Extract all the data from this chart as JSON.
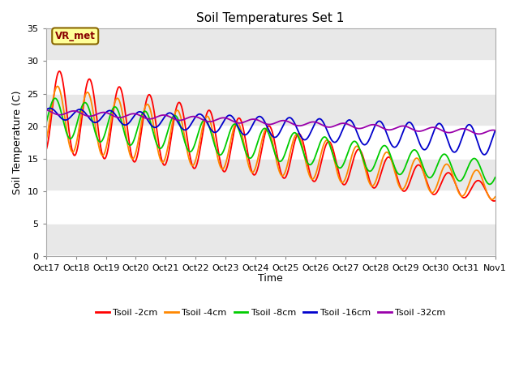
{
  "title": "Soil Temperatures Set 1",
  "xlabel": "Time",
  "ylabel": "Soil Temperature (C)",
  "xlim": [
    0,
    15
  ],
  "ylim": [
    0,
    35
  ],
  "yticks": [
    0,
    5,
    10,
    15,
    20,
    25,
    30,
    35
  ],
  "xtick_labels": [
    "Oct 17",
    "Oct 18",
    "Oct 19",
    "Oct 20",
    "Oct 21",
    "Oct 22",
    "Oct 23",
    "Oct 24",
    "Oct 25",
    "Oct 26",
    "Oct 27",
    "Oct 28",
    "Oct 29",
    "Oct 30",
    "Oct 31",
    "Nov 1"
  ],
  "annotation_text": "VR_met",
  "bg_color": "#e8e8e8",
  "grid_color": "#ffffff",
  "line_colors": {
    "Tsoil -2cm": "#ff0000",
    "Tsoil -4cm": "#ff8800",
    "Tsoil -8cm": "#00cc00",
    "Tsoil -16cm": "#0000cc",
    "Tsoil -32cm": "#9900aa"
  },
  "legend_labels": [
    "Tsoil -2cm",
    "Tsoil -4cm",
    "Tsoil -8cm",
    "Tsoil -16cm",
    "Tsoil -32cm"
  ]
}
